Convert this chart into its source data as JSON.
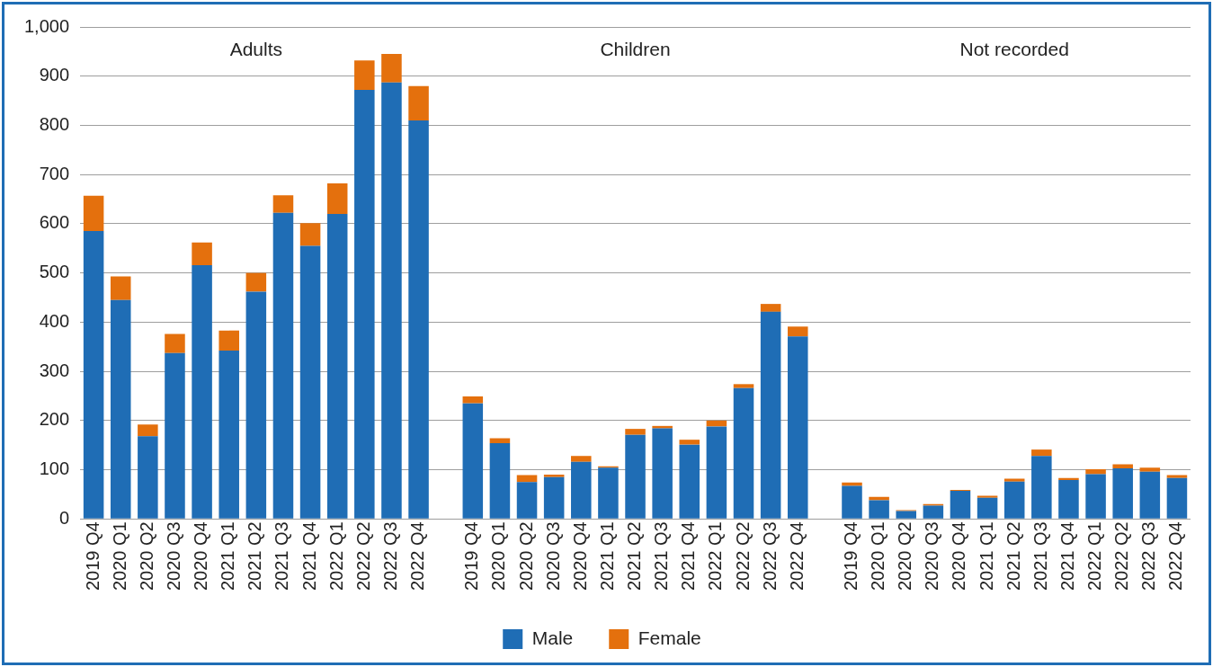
{
  "chart_data": {
    "type": "bar",
    "stacked": true,
    "categories": [
      "2019 Q4",
      "2020 Q1",
      "2020 Q2",
      "2020 Q3",
      "2020 Q4",
      "2021 Q1",
      "2021 Q2",
      "2021 Q3",
      "2021 Q4",
      "2022 Q1",
      "2022 Q2",
      "2022 Q3",
      "2022 Q4",
      null,
      "2019 Q4",
      "2020 Q1",
      "2020 Q2",
      "2020 Q3",
      "2020 Q4",
      "2021 Q1",
      "2021 Q2",
      "2021 Q3",
      "2021 Q4",
      "2022 Q1",
      "2022 Q2",
      "2022 Q3",
      "2022 Q4",
      null,
      "2019 Q4",
      "2020 Q1",
      "2020 Q2",
      "2020 Q3",
      "2020 Q4",
      "2021 Q1",
      "2021 Q2",
      "2021 Q3",
      "2021 Q4",
      "2022 Q1",
      "2022 Q2",
      "2022 Q3",
      "2022 Q4"
    ],
    "series": [
      {
        "name": "Male",
        "color": "#1f6db5",
        "values": [
          585,
          445,
          168,
          337,
          516,
          342,
          462,
          622,
          555,
          620,
          872,
          887,
          810,
          null,
          235,
          154,
          75,
          85,
          116,
          104,
          171,
          184,
          151,
          188,
          266,
          421,
          371,
          null,
          67,
          38,
          16,
          27,
          57,
          43,
          76,
          128,
          79,
          91,
          103,
          96,
          83
        ]
      },
      {
        "name": "Female",
        "color": "#e4700d",
        "values": [
          72,
          48,
          24,
          39,
          46,
          41,
          38,
          36,
          46,
          62,
          60,
          58,
          70,
          null,
          14,
          10,
          14,
          5,
          12,
          3,
          12,
          5,
          10,
          12,
          8,
          16,
          20,
          null,
          7,
          7,
          2,
          3,
          2,
          4,
          6,
          13,
          4,
          10,
          8,
          8,
          6
        ]
      }
    ],
    "ylim": [
      0,
      1000
    ],
    "yticks": [
      0,
      100,
      200,
      300,
      400,
      500,
      600,
      700,
      800,
      900,
      {
        "value": 1000,
        "label": "1,000"
      }
    ],
    "grid": "y",
    "legend": "bottom",
    "annotations": [
      "Adults",
      "Children",
      "Not recorded"
    ]
  }
}
